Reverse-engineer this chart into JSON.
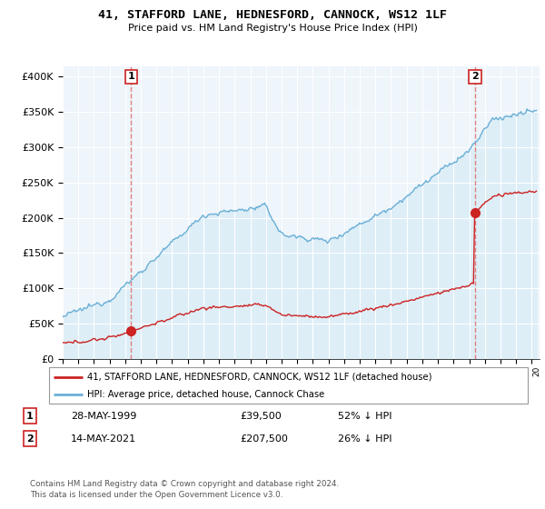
{
  "title": "41, STAFFORD LANE, HEDNESFORD, CANNOCK, WS12 1LF",
  "subtitle": "Price paid vs. HM Land Registry's House Price Index (HPI)",
  "ytick_values": [
    0,
    50000,
    100000,
    150000,
    200000,
    250000,
    300000,
    350000,
    400000
  ],
  "ylim": [
    0,
    415000
  ],
  "xlim_start": 1995.0,
  "xlim_end": 2025.5,
  "hpi_color": "#6aafd6",
  "hpi_fill_color": "#ddeef7",
  "price_color": "#cc2222",
  "vline_color": "#e08080",
  "marker1_date": 1999.38,
  "marker1_price": 39500,
  "marker2_date": 2021.37,
  "marker2_price": 207500,
  "legend_label1": "41, STAFFORD LANE, HEDNESFORD, CANNOCK, WS12 1LF (detached house)",
  "legend_label2": "HPI: Average price, detached house, Cannock Chase",
  "footer": "Contains HM Land Registry data © Crown copyright and database right 2024.\nThis data is licensed under the Open Government Licence v3.0.",
  "plot_bg_color": "#eef5fb",
  "grid_color": "#ffffff"
}
